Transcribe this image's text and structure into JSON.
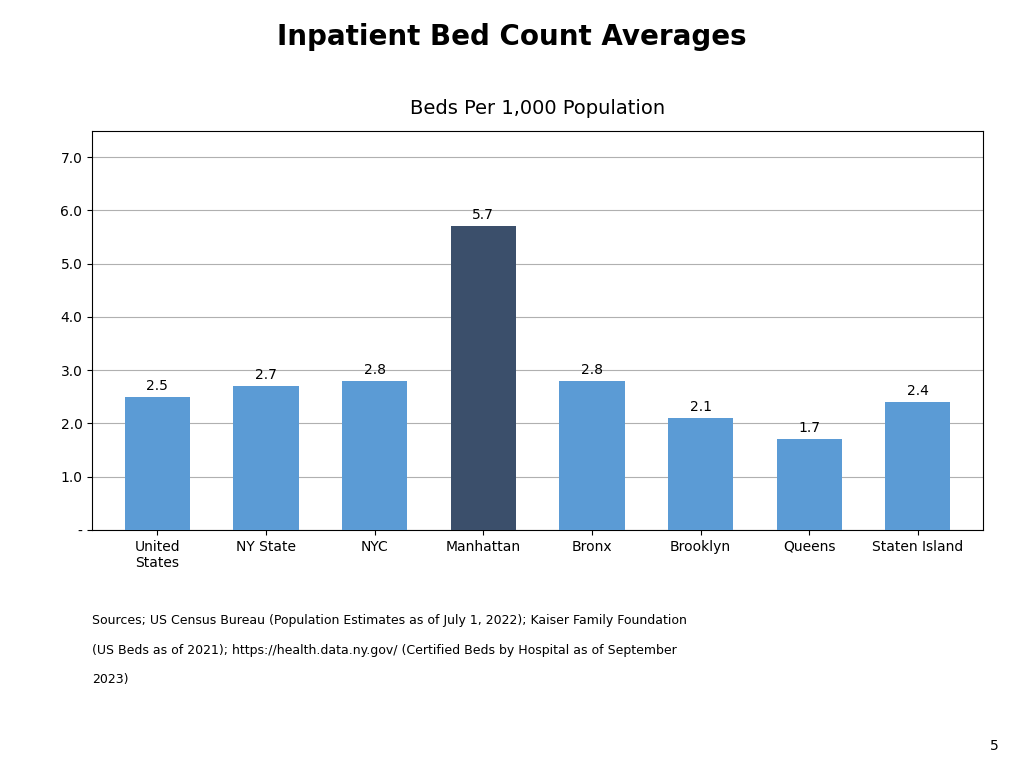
{
  "chart_data": {
    "type": "bar",
    "title": "Inpatient Bed Count Averages",
    "subtitle": "Beds Per 1,000 Population",
    "categories": [
      "United\nStates",
      "NY State",
      "NYC",
      "Manhattan",
      "Bronx",
      "Brooklyn",
      "Queens",
      "Staten Island"
    ],
    "values": [
      2.5,
      2.7,
      2.8,
      5.7,
      2.8,
      2.1,
      1.7,
      2.4
    ],
    "colors": [
      "#5B9BD5",
      "#5B9BD5",
      "#5B9BD5",
      "#3B4F6B",
      "#5B9BD5",
      "#5B9BD5",
      "#5B9BD5",
      "#5B9BD5"
    ],
    "ylim": [
      0,
      7.5
    ],
    "yticks": [
      {
        "value": 0,
        "label": "-"
      },
      {
        "value": 1,
        "label": "1.0"
      },
      {
        "value": 2,
        "label": "2.0"
      },
      {
        "value": 3,
        "label": "3.0"
      },
      {
        "value": 4,
        "label": "4.0"
      },
      {
        "value": 5,
        "label": "5.0"
      },
      {
        "value": 6,
        "label": "6.0"
      },
      {
        "value": 7,
        "label": "7.0"
      }
    ],
    "grid": true,
    "data_labels": true,
    "annotations": [
      "Sources; US Census Bureau (Population Estimates as of July 1, 2022); Kaiser Family Foundation",
      "(US Beds as of 2021); https://health.data.ny.gov/ (Certified Beds by Hospital as of September",
      "2023)",
      "5"
    ]
  }
}
